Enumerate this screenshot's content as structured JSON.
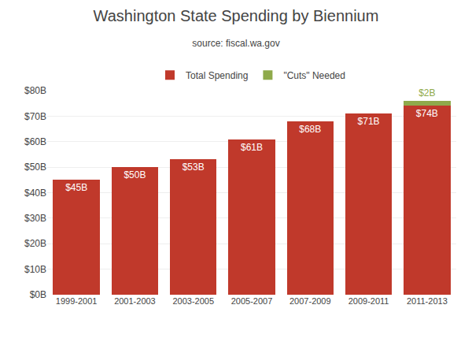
{
  "chart_data": {
    "type": "bar",
    "stacked": true,
    "title": "Washington State Spending by Biennium",
    "subtitle": "source: fiscal.wa.gov",
    "categories": [
      "1999-2001",
      "2001-2003",
      "2003-2005",
      "2005-2007",
      "2007-2009",
      "2009-2011",
      "2011-2013"
    ],
    "series": [
      {
        "name": "Total Spending",
        "color": "#c0392b",
        "values": [
          45,
          50,
          53,
          61,
          68,
          71,
          74
        ],
        "value_labels": [
          "$45B",
          "$50B",
          "$53B",
          "$61B",
          "$68B",
          "$71B",
          "$74B"
        ]
      },
      {
        "name": "\"Cuts\" Needed",
        "color": "#8faa4b",
        "values": [
          0,
          0,
          0,
          0,
          0,
          0,
          2
        ],
        "value_labels": [
          null,
          null,
          null,
          null,
          null,
          null,
          "$2B"
        ]
      }
    ],
    "data_labels": true,
    "ylim": [
      0,
      80
    ],
    "yticks": [
      {
        "value": 0,
        "label": "$0B"
      },
      {
        "value": 10,
        "label": "$10B"
      },
      {
        "value": 20,
        "label": "$20B"
      },
      {
        "value": 30,
        "label": "$30B"
      },
      {
        "value": 40,
        "label": "$40B"
      },
      {
        "value": 50,
        "label": "$50B"
      },
      {
        "value": 60,
        "label": "$60B"
      },
      {
        "value": 70,
        "label": "$70B"
      },
      {
        "value": 80,
        "label": "$80B"
      }
    ],
    "grid": true,
    "legend": "top"
  }
}
